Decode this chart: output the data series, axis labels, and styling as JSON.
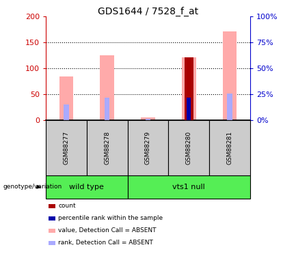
{
  "title": "GDS1644 / 7528_f_at",
  "samples": [
    "GSM88277",
    "GSM88278",
    "GSM88279",
    "GSM88280",
    "GSM88281"
  ],
  "pink_bar_values": [
    85,
    125,
    5,
    122,
    172
  ],
  "light_blue_bar_values": [
    30,
    44,
    3,
    44,
    52
  ],
  "dark_red_bar_values": [
    0,
    0,
    0,
    121,
    0
  ],
  "blue_bar_values": [
    0,
    0,
    0,
    44,
    0
  ],
  "ylim_left": [
    0,
    200
  ],
  "ylim_right": [
    0,
    100
  ],
  "yticks_left": [
    0,
    50,
    100,
    150,
    200
  ],
  "yticks_right": [
    0,
    25,
    50,
    75,
    100
  ],
  "ytick_labels_left": [
    "0",
    "50",
    "100",
    "150",
    "200"
  ],
  "ytick_labels_right": [
    "0%",
    "25%",
    "50%",
    "75%",
    "100%"
  ],
  "left_axis_color": "#cc0000",
  "right_axis_color": "#0000cc",
  "pink_color": "#ffaaaa",
  "light_blue_color": "#aaaaff",
  "dark_red_color": "#aa0000",
  "blue_color": "#0000aa",
  "group_defs": [
    {
      "name": "wild type",
      "start": 0,
      "end": 2
    },
    {
      "name": "vts1 null",
      "start": 2,
      "end": 5
    }
  ],
  "group_color": "#55ee55",
  "sample_box_color": "#cccccc",
  "legend_labels": [
    "count",
    "percentile rank within the sample",
    "value, Detection Call = ABSENT",
    "rank, Detection Call = ABSENT"
  ],
  "legend_colors": [
    "#aa0000",
    "#0000aa",
    "#ffaaaa",
    "#aaaaff"
  ]
}
